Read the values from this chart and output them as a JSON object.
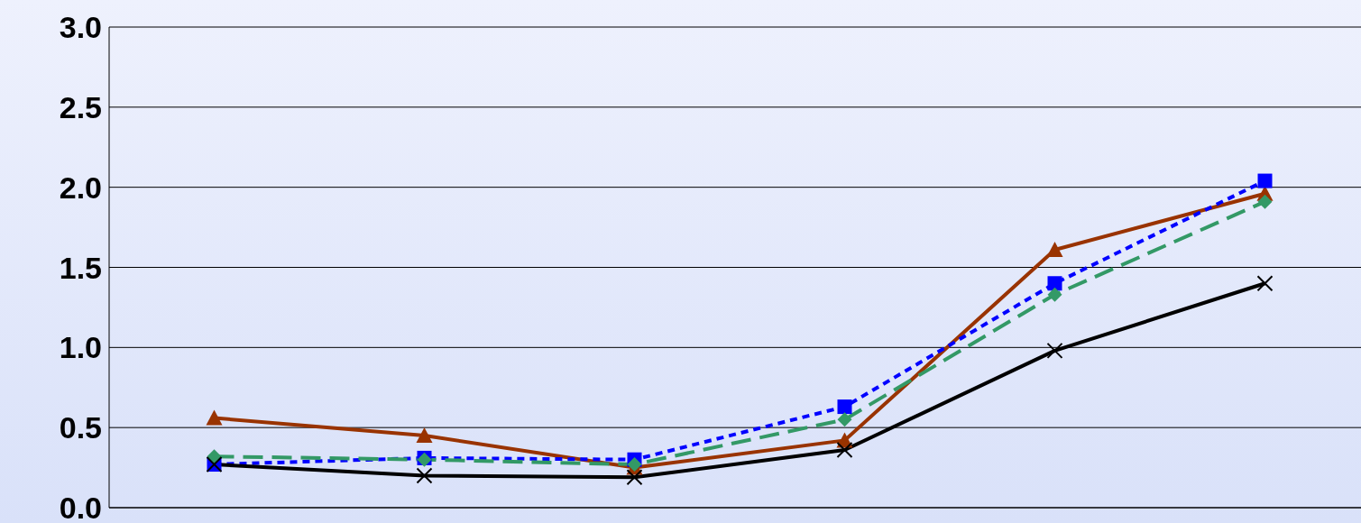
{
  "chart_data": {
    "type": "line",
    "categories": [
      null,
      null,
      null,
      null,
      null,
      null
    ],
    "series": [
      {
        "color": "#000000",
        "marker": "cross",
        "line_style": "solid",
        "values": [
          0.27,
          0.2,
          0.19,
          0.36,
          0.98,
          1.4
        ]
      },
      {
        "color": "#0000ff",
        "marker": "square",
        "line_style": "dotted",
        "values": [
          0.27,
          0.31,
          0.3,
          0.63,
          1.4,
          2.04
        ]
      },
      {
        "color": "#339966",
        "marker": "diamond",
        "line_style": "dashed",
        "values": [
          0.32,
          0.3,
          0.27,
          0.55,
          1.33,
          1.91
        ]
      },
      {
        "color": "#993300",
        "marker": "triangle",
        "line_style": "solid",
        "values": [
          0.56,
          0.45,
          0.25,
          0.42,
          1.61,
          1.96
        ]
      }
    ],
    "ylim": [
      0,
      3
    ],
    "yticks": [
      {
        "value": 0,
        "label": "0.0"
      },
      {
        "value": 0.5,
        "label": "0.5"
      },
      {
        "value": 1,
        "label": "1.0"
      },
      {
        "value": 1.5,
        "label": "1.5"
      },
      {
        "value": 2,
        "label": "2.0"
      },
      {
        "value": 2.5,
        "label": "2.5"
      },
      {
        "value": 3,
        "label": "3.0"
      }
    ],
    "grid": "y",
    "tick_labels": "y"
  }
}
